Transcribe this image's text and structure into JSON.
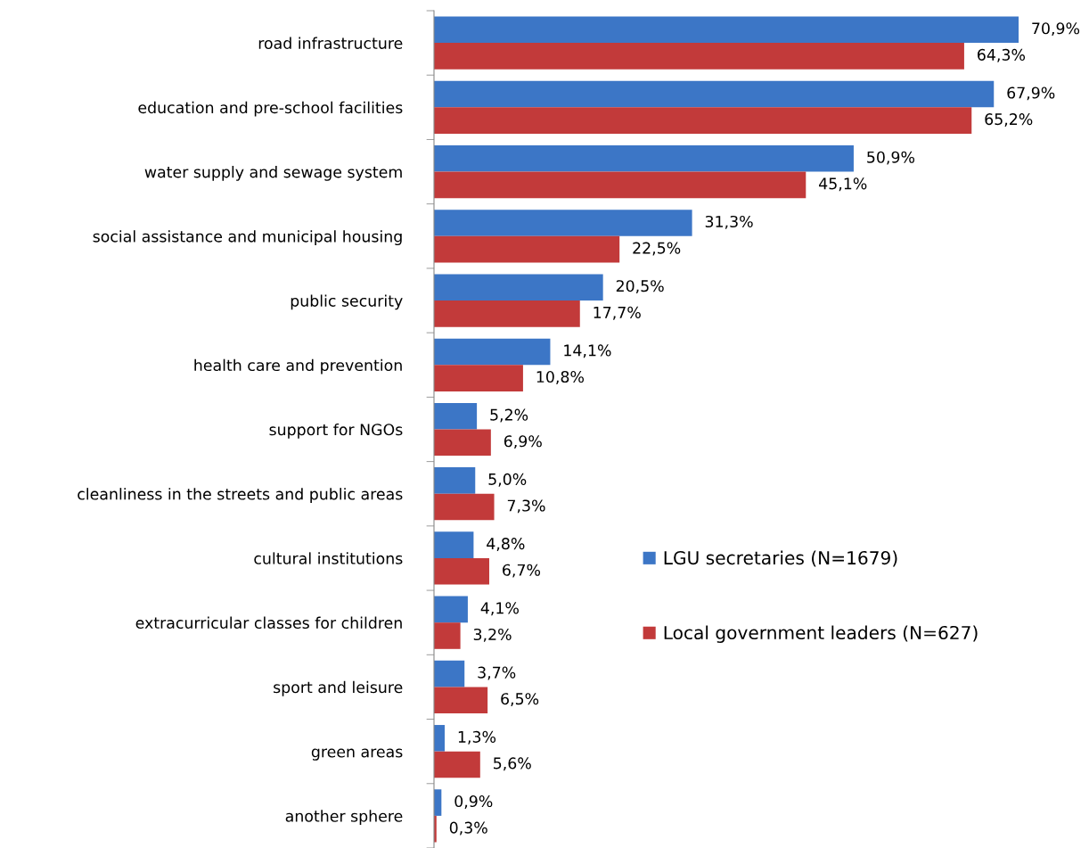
{
  "chart_data": {
    "type": "bar",
    "orientation": "horizontal",
    "tick_labels": "y",
    "legend": "right",
    "categories": [
      "road infrastructure",
      "education and pre-school facilities",
      "water supply and sewage system",
      "social assistance and municipal housing",
      "public security",
      "health care and prevention",
      "support for NGOs",
      "cleanliness in the streets and public areas",
      "cultural institutions",
      "extracurricular classes for children",
      "sport and leisure",
      "green areas",
      "another sphere"
    ],
    "series": [
      {
        "name": "LGU secretaries (N=1679)",
        "color": "#3c76c6",
        "values": [
          70.9,
          67.9,
          50.9,
          31.3,
          20.5,
          14.1,
          5.2,
          5.0,
          4.8,
          4.1,
          3.7,
          1.3,
          0.9
        ],
        "value_labels": [
          "70,9%",
          "67,9%",
          "50,9%",
          "31,3%",
          "20,5%",
          "14,1%",
          "5,2%",
          "5,0%",
          "4,8%",
          "4,1%",
          "3,7%",
          "1,3%",
          "0,9%"
        ]
      },
      {
        "name": "Local government leaders (N=627)",
        "color": "#c23a3a",
        "values": [
          64.3,
          65.2,
          45.1,
          22.5,
          17.7,
          10.8,
          6.9,
          7.3,
          6.7,
          3.2,
          6.5,
          5.6,
          0.3
        ],
        "value_labels": [
          "64,3%",
          "65,2%",
          "45,1%",
          "22,5%",
          "17,7%",
          "10,8%",
          "6,9%",
          "7,3%",
          "6,7%",
          "3,2%",
          "6,5%",
          "5,6%",
          "0,3%"
        ]
      }
    ]
  }
}
